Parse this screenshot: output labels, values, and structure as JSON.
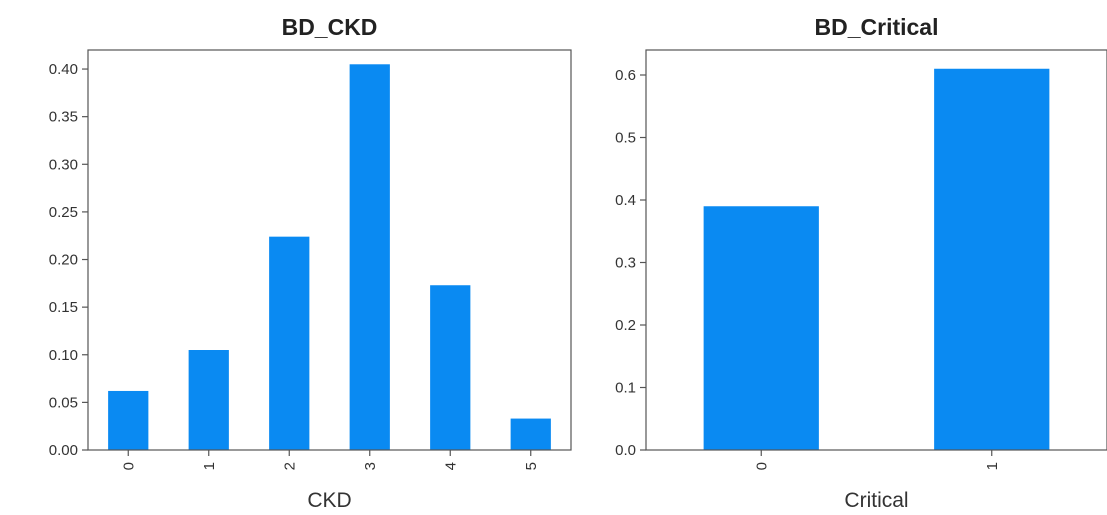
{
  "chart_data": [
    {
      "type": "bar",
      "title": "BD_CKD",
      "xlabel": "CKD",
      "ylabel": "",
      "categories": [
        "0",
        "1",
        "2",
        "3",
        "4",
        "5"
      ],
      "values": [
        0.062,
        0.105,
        0.224,
        0.405,
        0.173,
        0.033
      ],
      "ylim": [
        0,
        0.42
      ],
      "yticks": [
        "0.00",
        "0.05",
        "0.10",
        "0.15",
        "0.20",
        "0.25",
        "0.30",
        "0.35",
        "0.40"
      ],
      "bar_color": "#0a8af2",
      "grid": false
    },
    {
      "type": "bar",
      "title": "BD_Critical",
      "xlabel": "Critical",
      "ylabel": "",
      "categories": [
        "0",
        "1"
      ],
      "values": [
        0.39,
        0.61
      ],
      "ylim": [
        0,
        0.64
      ],
      "yticks": [
        "0.0",
        "0.1",
        "0.2",
        "0.3",
        "0.4",
        "0.5",
        "0.6"
      ],
      "bar_color": "#0a8af2",
      "grid": false
    }
  ]
}
